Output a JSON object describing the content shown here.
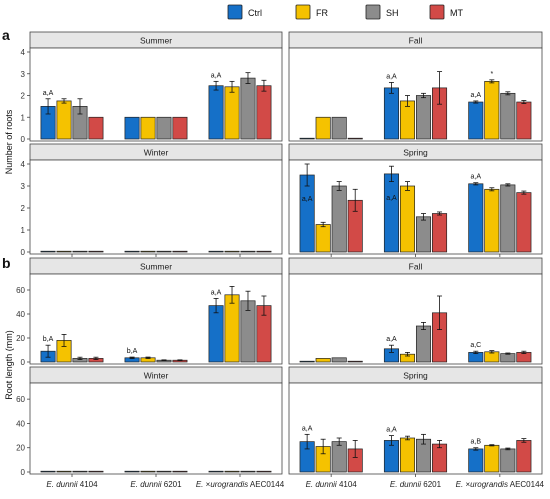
{
  "legend": {
    "items": [
      {
        "label": "Ctrl",
        "color": "#1570c8"
      },
      {
        "label": "FR",
        "color": "#f5c200"
      },
      {
        "label": "SH",
        "color": "#8c8c8c"
      },
      {
        "label": "MT",
        "color": "#d24a47"
      }
    ]
  },
  "xlabels": [
    {
      "italic": "E. dunnii",
      "rest": " 4104"
    },
    {
      "italic": "E. dunnii",
      "rest": " 6201"
    },
    {
      "italic": "E.",
      "rest": " ×",
      "italic2": "urograndis",
      "rest2": " AEC0144"
    }
  ],
  "chart_data": [
    {
      "type": "bar",
      "panel_label": "a",
      "ylabel": "Number of roots",
      "ylim": [
        0,
        4
      ],
      "yticks": [
        0,
        1,
        2,
        3,
        4
      ],
      "categories": [
        "E. dunnii 4104",
        "E. dunnii 6201",
        "E. ×urograndis AEC0144"
      ],
      "series_names": [
        "Ctrl",
        "FR",
        "SH",
        "MT"
      ],
      "facets": [
        {
          "season": "Summer",
          "values": [
            [
              1.5,
              1.75,
              1.5,
              1.0
            ],
            [
              1.0,
              1.0,
              1.0,
              1.0
            ],
            [
              2.45,
              2.4,
              2.8,
              2.45
            ]
          ],
          "errors": [
            [
              0.35,
              0.1,
              0.35,
              0
            ],
            [
              0,
              0,
              0,
              0
            ],
            [
              0.2,
              0.25,
              0.25,
              0.25
            ]
          ],
          "annotations": [
            {
              "group": 0,
              "bar": 0,
              "text": "a,A"
            },
            {
              "group": 2,
              "bar": 0,
              "text": "a,A"
            }
          ]
        },
        {
          "season": "Fall",
          "values": [
            [
              0.0,
              1.0,
              1.0,
              0.0
            ],
            [
              2.35,
              1.75,
              2.0,
              2.35
            ],
            [
              1.7,
              2.65,
              2.1,
              1.7
            ]
          ],
          "errors": [
            [
              0,
              0,
              0,
              0
            ],
            [
              0.25,
              0.25,
              0.1,
              0.75
            ],
            [
              0.05,
              0.07,
              0.07,
              0.07
            ]
          ],
          "annotations": [
            {
              "group": 1,
              "bar": 0,
              "text": "a,A"
            },
            {
              "group": 2,
              "bar": 0,
              "text": "a,A"
            },
            {
              "group": 2,
              "bar": 1,
              "text": "*"
            }
          ]
        },
        {
          "season": "Winter",
          "values": [
            [
              0,
              0,
              0,
              0
            ],
            [
              0,
              0,
              0,
              0
            ],
            [
              0,
              0,
              0,
              0
            ]
          ],
          "errors": [
            [
              0,
              0,
              0,
              0
            ],
            [
              0,
              0,
              0,
              0
            ],
            [
              0,
              0,
              0,
              0
            ]
          ],
          "annotations": []
        },
        {
          "season": "Spring",
          "values": [
            [
              3.5,
              1.25,
              3.0,
              2.35
            ],
            [
              3.55,
              3.0,
              1.6,
              1.75
            ],
            [
              3.1,
              2.85,
              3.05,
              2.7
            ]
          ],
          "errors": [
            [
              0.5,
              0.1,
              0.2,
              0.5
            ],
            [
              0.35,
              0.2,
              0.15,
              0.07
            ],
            [
              0.05,
              0.07,
              0.05,
              0.07
            ]
          ],
          "annotations": [
            {
              "group": 0,
              "bar": 0,
              "text": "a,A",
              "inside": true
            },
            {
              "group": 1,
              "bar": 0,
              "text": "a,A",
              "inside": true
            },
            {
              "group": 2,
              "bar": 0,
              "text": "a,A"
            }
          ]
        }
      ]
    },
    {
      "type": "bar",
      "panel_label": "b",
      "ylabel": "Root length (mm)",
      "ylim": [
        0,
        70
      ],
      "yticks": [
        0,
        20,
        40,
        60
      ],
      "categories": [
        "E. dunnii 4104",
        "E. dunnii 6201",
        "E. ×urograndis AEC0144"
      ],
      "series_names": [
        "Ctrl",
        "FR",
        "SH",
        "MT"
      ],
      "facets": [
        {
          "season": "Summer",
          "values": [
            [
              9,
              18,
              3,
              3
            ],
            [
              3.5,
              3.5,
              1.5,
              1.5
            ],
            [
              47,
              56,
              51,
              47
            ]
          ],
          "errors": [
            [
              5,
              5,
              1,
              1
            ],
            [
              0.6,
              0.6,
              0.3,
              0.3
            ],
            [
              6,
              7,
              8,
              8
            ]
          ],
          "annotations": [
            {
              "group": 0,
              "bar": 0,
              "text": "b,A"
            },
            {
              "group": 1,
              "bar": 0,
              "text": "b,A"
            },
            {
              "group": 2,
              "bar": 0,
              "text": "a,A"
            }
          ]
        },
        {
          "season": "Fall",
          "values": [
            [
              0.5,
              3,
              3.5,
              0.5
            ],
            [
              11,
              6.5,
              30,
              41
            ],
            [
              8,
              8.5,
              7,
              8
            ]
          ],
          "errors": [
            [
              0,
              0,
              0,
              0
            ],
            [
              3,
              1.5,
              3,
              14
            ],
            [
              1,
              1,
              0.5,
              1
            ]
          ],
          "annotations": [
            {
              "group": 1,
              "bar": 0,
              "text": "a,A"
            },
            {
              "group": 2,
              "bar": 0,
              "text": "a,C"
            }
          ]
        },
        {
          "season": "Winter",
          "values": [
            [
              0,
              0,
              0,
              0
            ],
            [
              0,
              0,
              0,
              0
            ],
            [
              0,
              0,
              0,
              0
            ]
          ],
          "errors": [
            [
              0,
              0,
              0,
              0
            ],
            [
              0,
              0,
              0,
              0
            ],
            [
              0,
              0,
              0,
              0
            ]
          ],
          "annotations": []
        },
        {
          "season": "Spring",
          "values": [
            [
              25,
              21,
              25,
              19
            ],
            [
              26,
              28,
              27,
              23
            ],
            [
              19,
              22,
              19,
              26
            ]
          ],
          "errors": [
            [
              6,
              6,
              3,
              7
            ],
            [
              4,
              1.5,
              4,
              3
            ],
            [
              1,
              0.5,
              0.7,
              1.5
            ]
          ],
          "annotations": [
            {
              "group": 0,
              "bar": 0,
              "text": "a,A"
            },
            {
              "group": 1,
              "bar": 0,
              "text": "a,A"
            },
            {
              "group": 2,
              "bar": 0,
              "text": "a,B"
            }
          ]
        }
      ]
    }
  ]
}
